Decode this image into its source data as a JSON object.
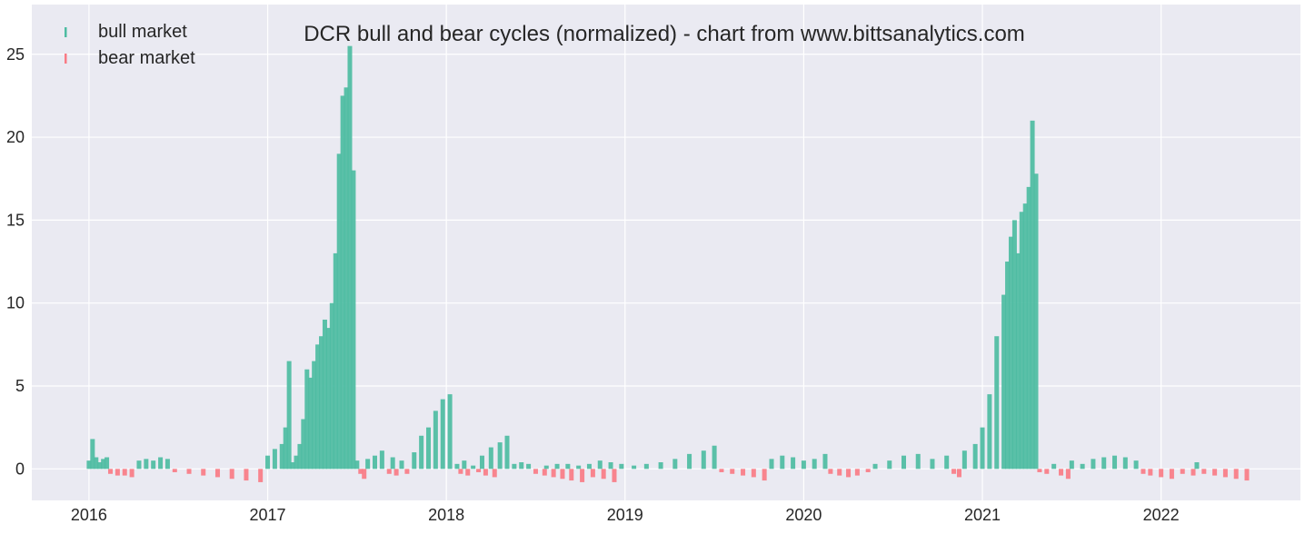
{
  "chart_data": {
    "type": "bar",
    "title": "DCR bull and bear cycles (normalized)  - chart from www.bittsanalytics.com",
    "xlabel": "",
    "ylabel": "",
    "xlim": [
      2015.68,
      2022.78
    ],
    "ylim": [
      -1.9,
      28.0
    ],
    "xticks": [
      2016,
      2017,
      2018,
      2019,
      2020,
      2021,
      2022
    ],
    "xtick_labels": [
      "2016",
      "2017",
      "2018",
      "2019",
      "2020",
      "2021",
      "2022"
    ],
    "yticks": [
      0,
      5,
      10,
      15,
      20,
      25
    ],
    "ytick_labels": [
      "0",
      "5",
      "10",
      "15",
      "20",
      "25"
    ],
    "grid": true,
    "legend_position": "top-left",
    "colors": {
      "bull": "#4dbca2",
      "bear": "#f97b85",
      "background": "#eaeaf2",
      "grid": "#ffffff"
    },
    "series": [
      {
        "name": "bull market",
        "color": "#4dbca2",
        "x": [
          2016.0,
          2016.02,
          2016.04,
          2016.06,
          2016.08,
          2016.1,
          2016.28,
          2016.32,
          2016.36,
          2016.4,
          2016.44,
          2017.0,
          2017.04,
          2017.08,
          2017.1,
          2017.12,
          2017.14,
          2017.16,
          2017.18,
          2017.2,
          2017.22,
          2017.24,
          2017.26,
          2017.28,
          2017.3,
          2017.32,
          2017.34,
          2017.36,
          2017.38,
          2017.4,
          2017.42,
          2017.44,
          2017.46,
          2017.48,
          2017.5,
          2017.56,
          2017.6,
          2017.64,
          2017.7,
          2017.75,
          2017.82,
          2017.86,
          2017.9,
          2017.94,
          2017.98,
          2018.02,
          2018.06,
          2018.1,
          2018.15,
          2018.2,
          2018.25,
          2018.3,
          2018.34,
          2018.38,
          2018.42,
          2018.46,
          2018.56,
          2018.62,
          2018.68,
          2018.74,
          2018.8,
          2018.86,
          2018.92,
          2018.98,
          2019.05,
          2019.12,
          2019.2,
          2019.28,
          2019.36,
          2019.44,
          2019.5,
          2019.82,
          2019.88,
          2019.94,
          2020.0,
          2020.06,
          2020.12,
          2020.4,
          2020.48,
          2020.56,
          2020.64,
          2020.72,
          2020.8,
          2020.9,
          2020.96,
          2021.0,
          2021.04,
          2021.08,
          2021.12,
          2021.14,
          2021.16,
          2021.18,
          2021.2,
          2021.22,
          2021.24,
          2021.26,
          2021.28,
          2021.3,
          2021.4,
          2021.5,
          2021.56,
          2021.62,
          2021.68,
          2021.74,
          2021.8,
          2021.86,
          2022.2
        ],
        "values": [
          0.5,
          1.8,
          0.7,
          0.4,
          0.6,
          0.7,
          0.5,
          0.6,
          0.5,
          0.7,
          0.6,
          0.8,
          1.2,
          1.5,
          2.5,
          6.5,
          0.4,
          0.8,
          1.5,
          3.0,
          6.0,
          5.5,
          6.5,
          7.5,
          8.0,
          9.0,
          8.5,
          10.0,
          13.0,
          19.0,
          22.5,
          23.0,
          25.5,
          18.0,
          0.5,
          0.6,
          0.8,
          1.1,
          0.7,
          0.5,
          1.0,
          2.0,
          2.5,
          3.5,
          4.2,
          4.5,
          0.3,
          0.5,
          0.2,
          0.8,
          1.3,
          1.6,
          2.0,
          0.3,
          0.4,
          0.3,
          0.2,
          0.3,
          0.3,
          0.2,
          0.3,
          0.5,
          0.4,
          0.3,
          0.2,
          0.3,
          0.4,
          0.6,
          0.9,
          1.1,
          1.4,
          0.6,
          0.8,
          0.7,
          0.5,
          0.6,
          0.9,
          0.3,
          0.5,
          0.8,
          0.9,
          0.6,
          0.8,
          1.1,
          1.5,
          2.5,
          4.5,
          8.0,
          10.5,
          12.5,
          14.0,
          15.0,
          13.0,
          15.5,
          16.0,
          17.0,
          21.0,
          17.8,
          0.3,
          0.5,
          0.3,
          0.6,
          0.7,
          0.8,
          0.7,
          0.5,
          0.4
        ]
      },
      {
        "name": "bear market",
        "color": "#f97b85",
        "x": [
          2016.12,
          2016.16,
          2016.2,
          2016.24,
          2016.48,
          2016.56,
          2016.64,
          2016.72,
          2016.8,
          2016.88,
          2016.96,
          2017.52,
          2017.54,
          2017.68,
          2017.72,
          2017.78,
          2018.08,
          2018.12,
          2018.18,
          2018.22,
          2018.27,
          2018.5,
          2018.55,
          2018.6,
          2018.65,
          2018.7,
          2018.76,
          2018.82,
          2018.88,
          2018.94,
          2019.54,
          2019.6,
          2019.66,
          2019.72,
          2019.78,
          2020.15,
          2020.2,
          2020.25,
          2020.3,
          2020.36,
          2020.84,
          2020.87,
          2021.32,
          2021.36,
          2021.44,
          2021.48,
          2021.9,
          2021.94,
          2022.0,
          2022.06,
          2022.12,
          2022.18,
          2022.24,
          2022.3,
          2022.36,
          2022.42,
          2022.48
        ],
        "values": [
          -0.3,
          -0.4,
          -0.4,
          -0.5,
          -0.2,
          -0.3,
          -0.4,
          -0.5,
          -0.6,
          -0.7,
          -0.8,
          -0.3,
          -0.6,
          -0.3,
          -0.4,
          -0.3,
          -0.3,
          -0.4,
          -0.2,
          -0.4,
          -0.5,
          -0.3,
          -0.4,
          -0.5,
          -0.6,
          -0.7,
          -0.8,
          -0.5,
          -0.6,
          -0.8,
          -0.2,
          -0.3,
          -0.4,
          -0.5,
          -0.7,
          -0.3,
          -0.4,
          -0.5,
          -0.4,
          -0.2,
          -0.3,
          -0.5,
          -0.2,
          -0.3,
          -0.4,
          -0.6,
          -0.3,
          -0.4,
          -0.5,
          -0.6,
          -0.3,
          -0.4,
          -0.3,
          -0.4,
          -0.5,
          -0.6,
          -0.7
        ]
      }
    ]
  }
}
